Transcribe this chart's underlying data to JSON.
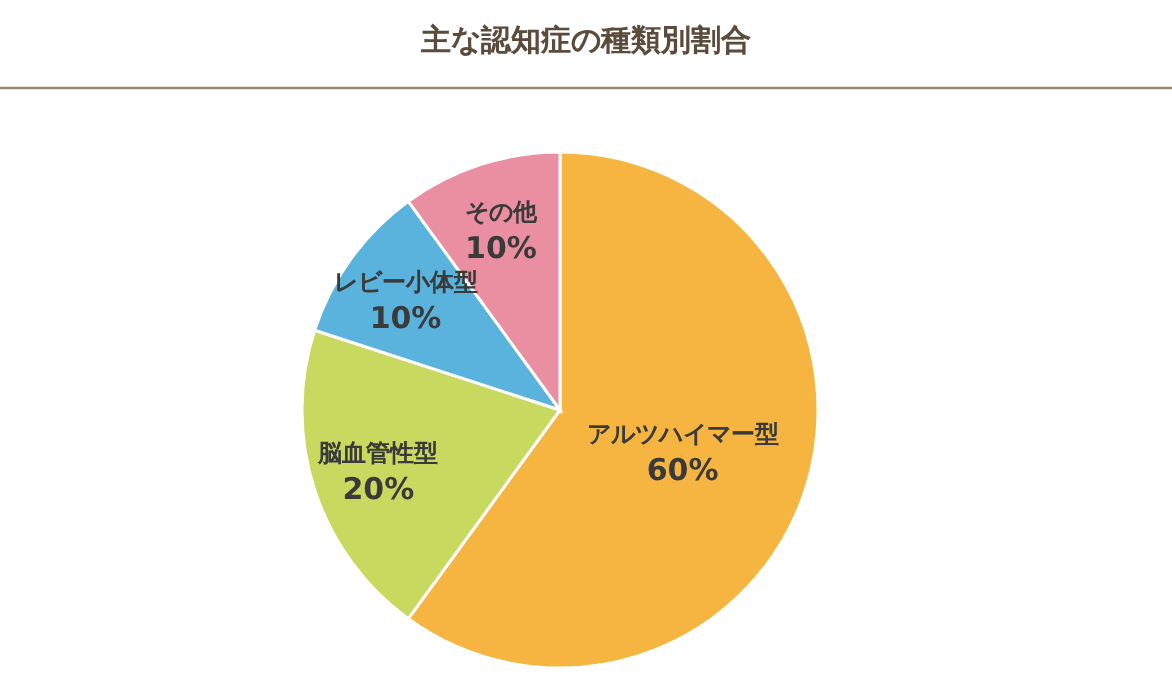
{
  "chart_data": {
    "type": "pie",
    "title": "主な認知症の種類別割合",
    "categories": [
      "アルツハイマー型",
      "脳血管性型",
      "レビー小体型",
      "その他"
    ],
    "values": [
      60,
      20,
      10,
      10
    ],
    "colors": [
      "#f5b540",
      "#c7d95e",
      "#5ab3dc",
      "#ea8fa2"
    ],
    "value_labels": [
      "60%",
      "20%",
      "10%",
      "10%"
    ]
  }
}
